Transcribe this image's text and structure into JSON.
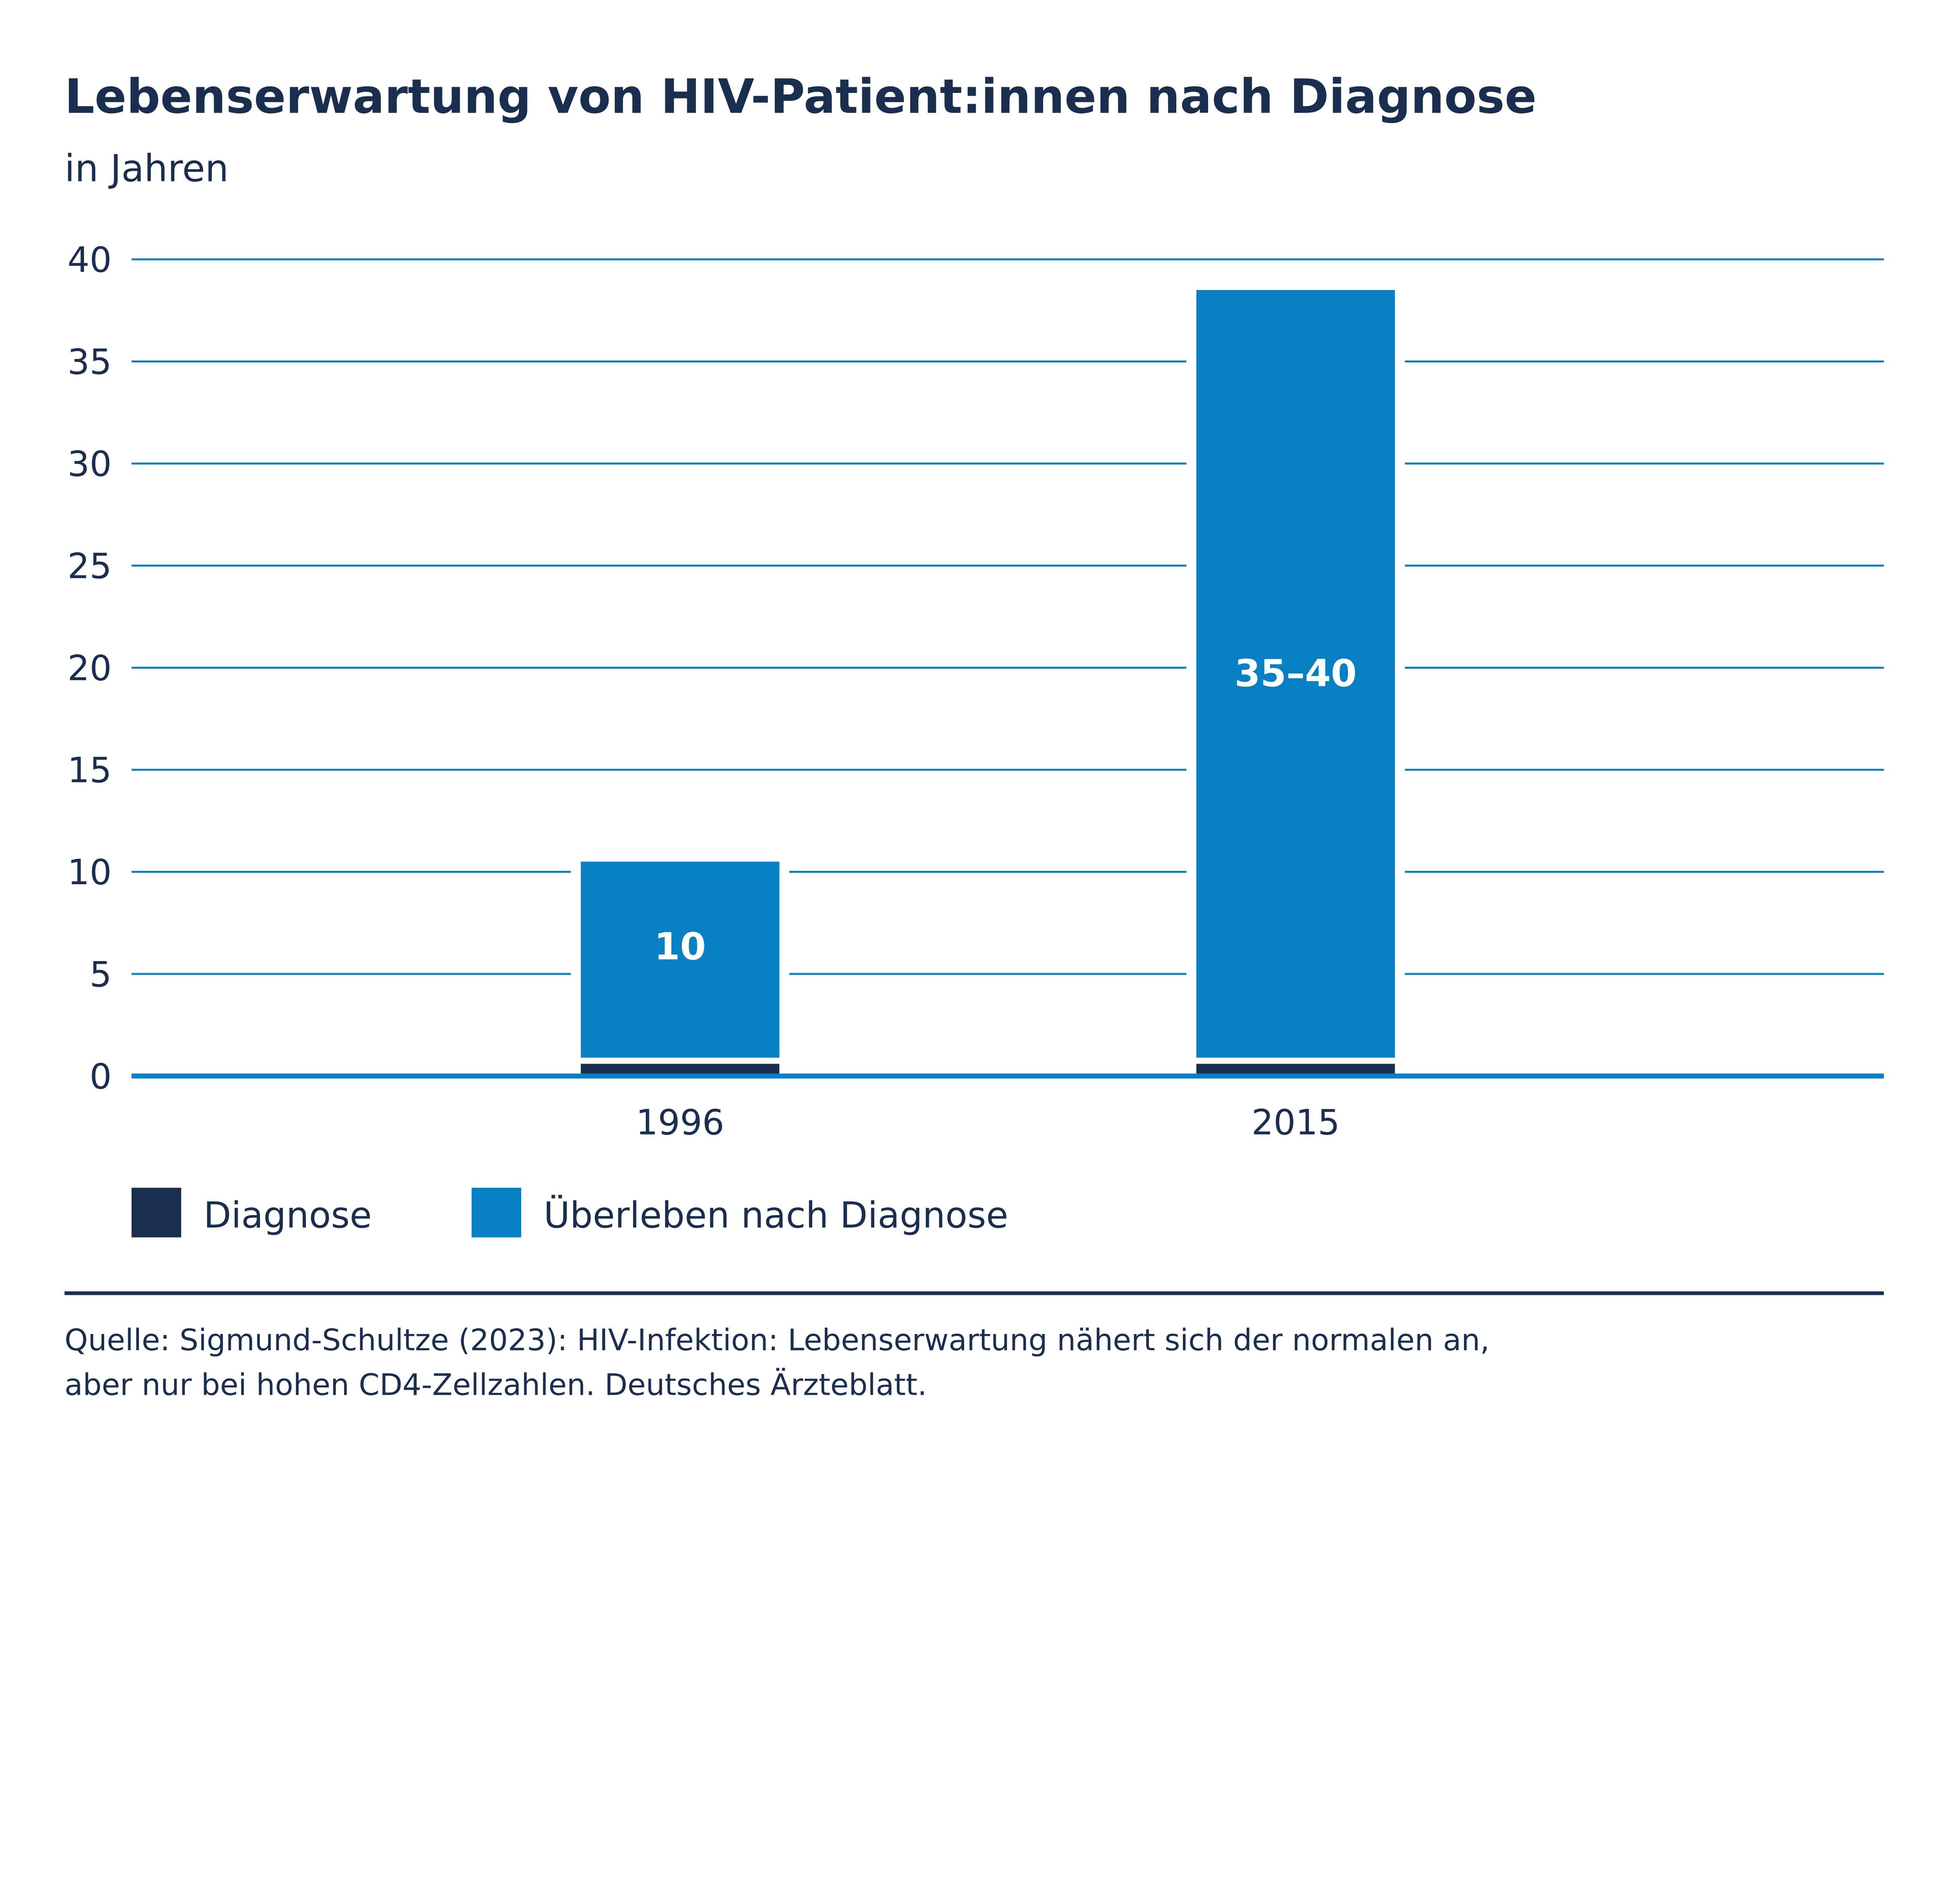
{
  "chart_data": {
    "type": "bar",
    "stacked": true,
    "title": "Lebenserwartung von HIV-Patient:innen nach Diagnose",
    "subtitle": "in Jahren",
    "categories": [
      "1996",
      "2015"
    ],
    "series": [
      {
        "name": "Diagnose",
        "values": [
          0.6,
          0.6
        ],
        "color": "#1a2e4f"
      },
      {
        "name": "Überleben nach Diagnose",
        "values": [
          9.6,
          37.6
        ],
        "color": "#0781c4",
        "data_labels": [
          "10",
          "35–40"
        ]
      }
    ],
    "ylim": [
      0,
      40
    ],
    "yticks": [
      "0",
      "5",
      "10",
      "15",
      "20",
      "25",
      "30",
      "35",
      "40"
    ],
    "grid": true,
    "legend": "bottom-left",
    "source": [
      "Quelle: Sigmund-Schultze (2023): HIV-Infektion: Lebenserwartung nähert sich der normalen an,",
      "aber nur bei hohen CD4-Zellzahlen. Deutsches Ärzteblatt."
    ]
  }
}
